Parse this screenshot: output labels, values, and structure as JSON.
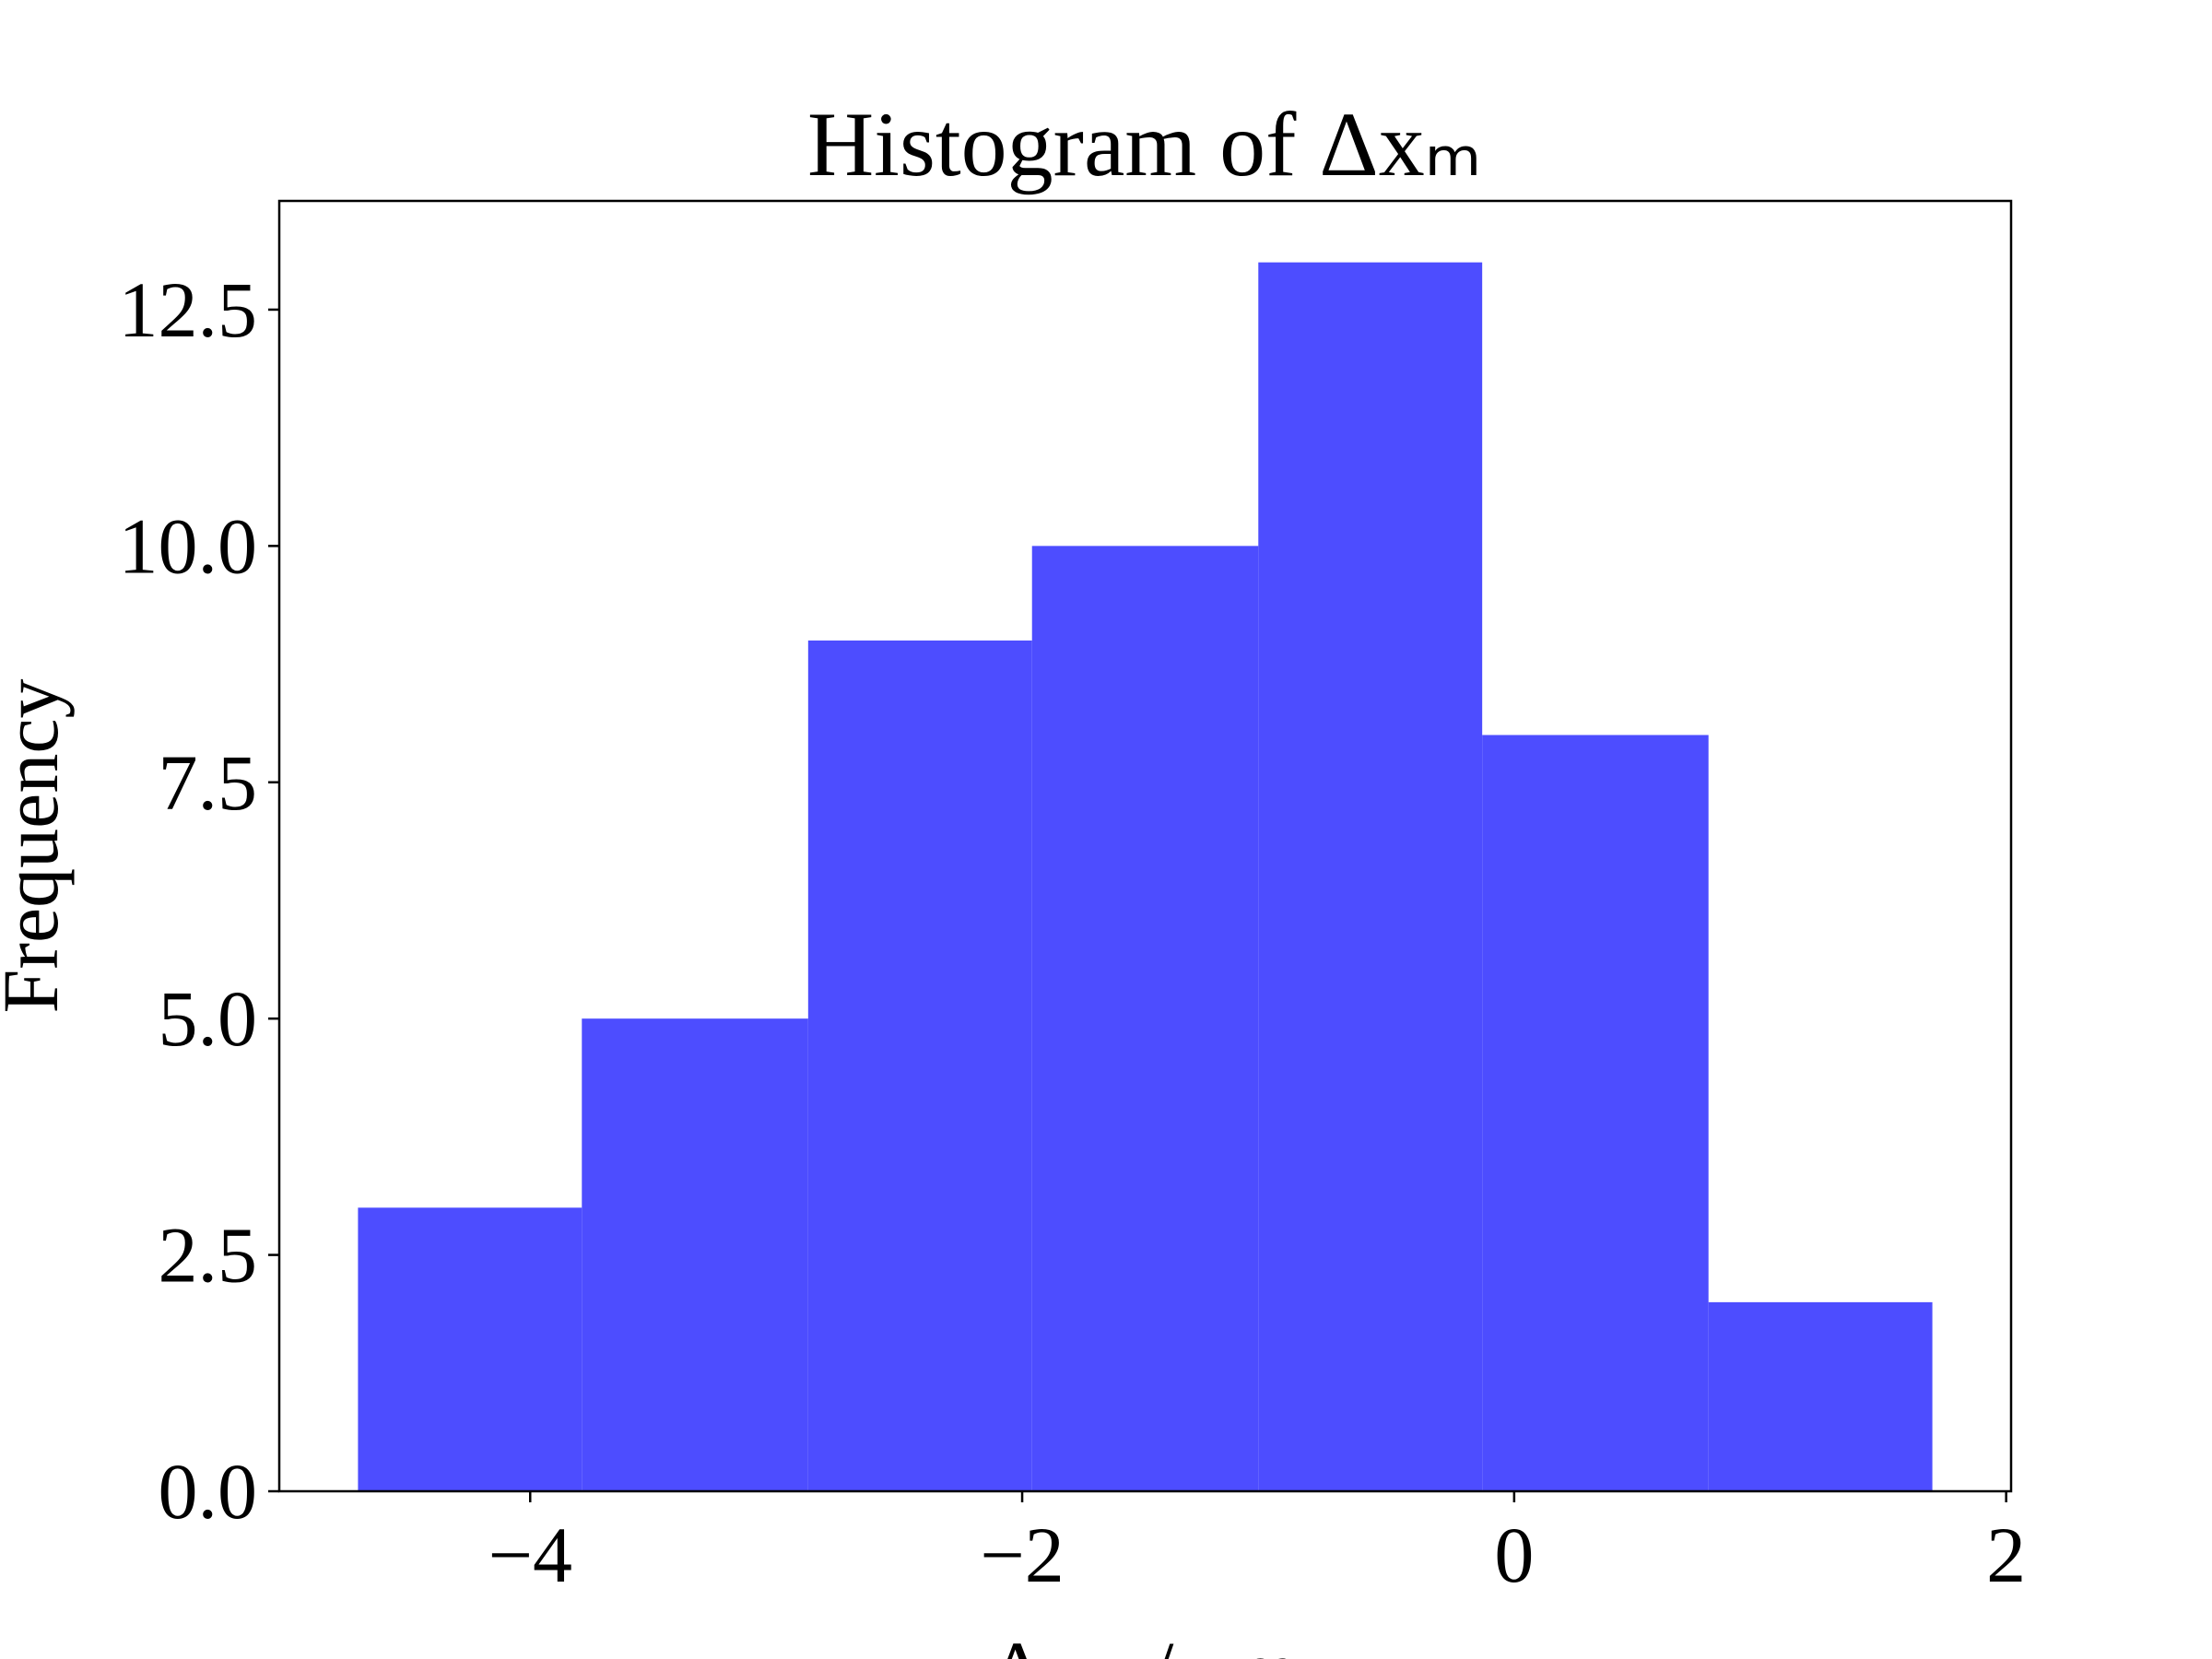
{
  "chart_data": {
    "type": "histogram",
    "title": "Histogram of Δxₘ",
    "x_label": "Δxₘ / μm",
    "y_label": "Frequency",
    "bins": [
      -4.7,
      -3.79,
      -2.87,
      -1.96,
      -1.04,
      -0.13,
      0.79,
      1.7
    ],
    "values": [
      3,
      5,
      9,
      10,
      13,
      8,
      2
    ],
    "color": "#4d4dff",
    "xlim": [
      -5.02,
      2.02
    ],
    "xticks": [
      {
        "value": -4,
        "label": "−4"
      },
      {
        "value": -2,
        "label": "−2"
      },
      0,
      2
    ],
    "ylim": [
      0,
      13.65
    ],
    "yticks": [
      {
        "value": 0,
        "label": "0.0"
      },
      2.5,
      {
        "value": 5,
        "label": "5.0"
      },
      7.5,
      {
        "value": 10,
        "label": "10.0"
      },
      12.5
    ],
    "grid": false
  }
}
